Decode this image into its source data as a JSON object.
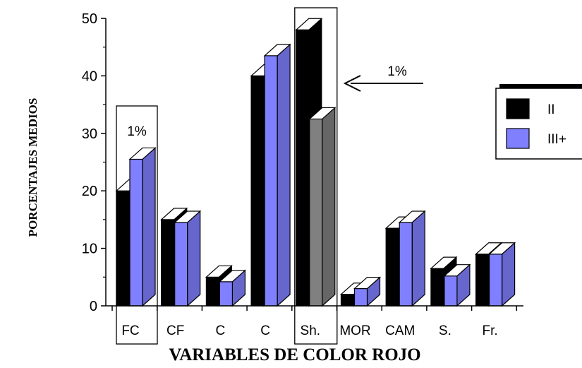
{
  "chart_data": {
    "type": "bar",
    "style": "3d",
    "xlabel": "VARIABLES DE COLOR ROJO",
    "ylabel": "PORCENTAJES MEDIOS",
    "ylim": [
      0,
      50
    ],
    "yticks": [
      "0",
      "10",
      "20",
      "30",
      "40",
      "50"
    ],
    "categories": [
      "FC",
      "CF",
      "C",
      "C",
      "Sh.",
      "MOR",
      "CAM",
      "S.",
      "Fr."
    ],
    "series": [
      {
        "name": "II",
        "color": "#000000",
        "values": [
          20,
          15,
          5,
          40,
          48,
          2,
          13.5,
          6.5,
          9
        ]
      },
      {
        "name": "III+",
        "color": "#8080ff",
        "values": [
          25.5,
          14.5,
          4.2,
          43.5,
          32.5,
          3,
          14.5,
          5.2,
          9
        ]
      }
    ],
    "highlight_colors": {
      "Sh.": [
        "#000000",
        "#808080"
      ]
    },
    "legend": {
      "position": "right"
    },
    "annotations": [
      {
        "text": "1%",
        "target": "FC"
      },
      {
        "text": "1%",
        "target": "Sh.",
        "arrow": true
      }
    ],
    "grid": false
  }
}
